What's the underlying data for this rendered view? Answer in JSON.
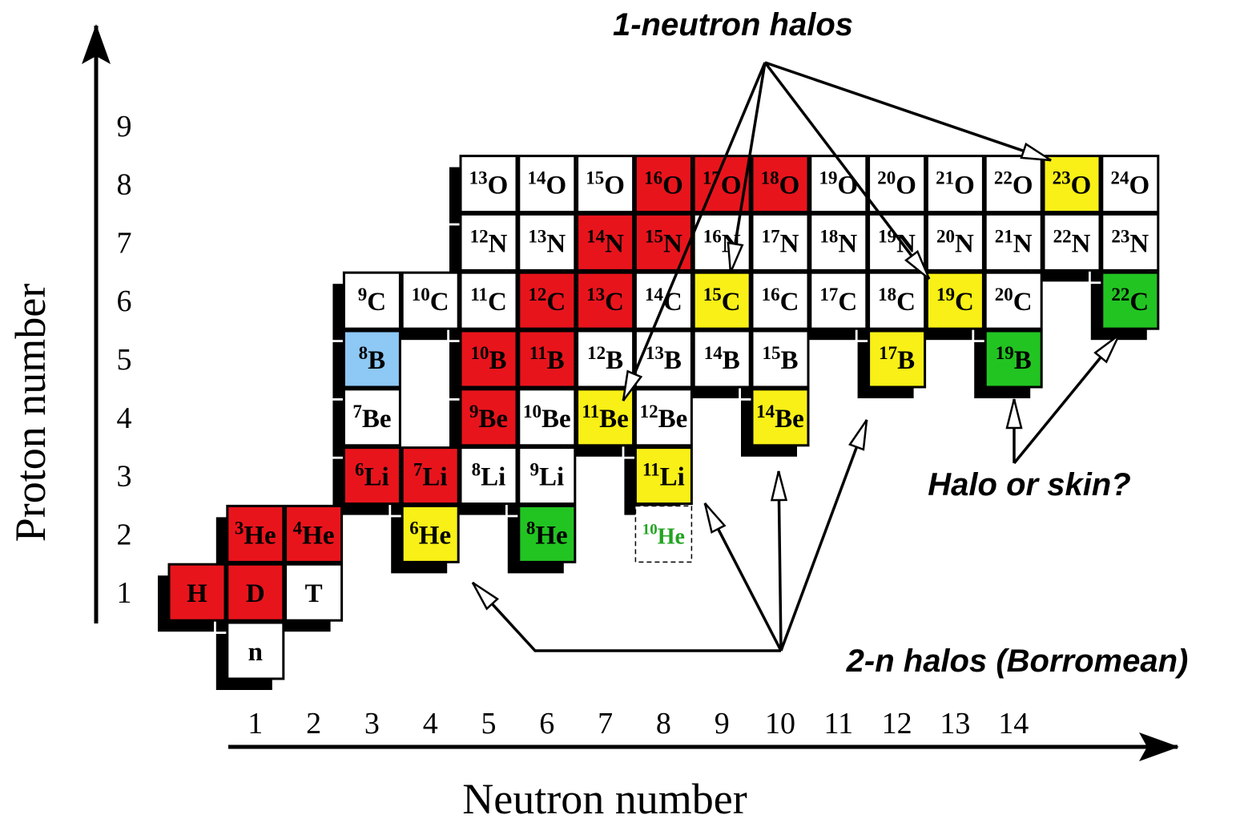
{
  "x_axis": {
    "label": "Neutron number",
    "ticks": [
      1,
      2,
      3,
      4,
      5,
      6,
      7,
      8,
      9,
      10,
      11,
      12,
      13,
      14
    ]
  },
  "y_axis": {
    "label": "Proton number",
    "ticks": [
      1,
      2,
      3,
      4,
      5,
      6,
      7,
      8,
      9
    ]
  },
  "annotations": {
    "one_neutron": "1-neutron halos",
    "two_neutron": "2-n halos (Borromean)",
    "halo_or_skin": "Halo or skin?"
  },
  "nuclides": [
    {
      "symbol": "n",
      "neutrons": 1,
      "protons": 0,
      "color": "#ffffff"
    },
    {
      "symbol": "H",
      "neutrons": 0,
      "protons": 1,
      "color": "#e8141c"
    },
    {
      "symbol": "D",
      "neutrons": 1,
      "protons": 1,
      "color": "#e8141c"
    },
    {
      "symbol": "T",
      "neutrons": 2,
      "protons": 1,
      "color": "#ffffff"
    },
    {
      "mass": 3,
      "symbol": "He",
      "neutrons": 1,
      "protons": 2,
      "color": "#e8141c"
    },
    {
      "mass": 4,
      "symbol": "He",
      "neutrons": 2,
      "protons": 2,
      "color": "#e8141c"
    },
    {
      "mass": 6,
      "symbol": "He",
      "neutrons": 4,
      "protons": 2,
      "color": "#f8f016"
    },
    {
      "mass": 8,
      "symbol": "He",
      "neutrons": 6,
      "protons": 2,
      "color": "#22c422"
    },
    {
      "mass": 10,
      "symbol": "He",
      "neutrons": 8,
      "protons": 2,
      "color": "#ffffff",
      "border": "dashed",
      "text_color": "#22a422"
    },
    {
      "mass": 6,
      "symbol": "Li",
      "neutrons": 3,
      "protons": 3,
      "color": "#e8141c"
    },
    {
      "mass": 7,
      "symbol": "Li",
      "neutrons": 4,
      "protons": 3,
      "color": "#e8141c"
    },
    {
      "mass": 8,
      "symbol": "Li",
      "neutrons": 5,
      "protons": 3,
      "color": "#ffffff"
    },
    {
      "mass": 9,
      "symbol": "Li",
      "neutrons": 6,
      "protons": 3,
      "color": "#ffffff"
    },
    {
      "mass": 11,
      "symbol": "Li",
      "neutrons": 8,
      "protons": 3,
      "color": "#f8f016"
    },
    {
      "mass": 7,
      "symbol": "Be",
      "neutrons": 3,
      "protons": 4,
      "color": "#ffffff"
    },
    {
      "mass": 9,
      "symbol": "Be",
      "neutrons": 5,
      "protons": 4,
      "color": "#e8141c"
    },
    {
      "mass": 10,
      "symbol": "Be",
      "neutrons": 6,
      "protons": 4,
      "color": "#ffffff"
    },
    {
      "mass": 11,
      "symbol": "Be",
      "neutrons": 7,
      "protons": 4,
      "color": "#f8f016"
    },
    {
      "mass": 12,
      "symbol": "Be",
      "neutrons": 8,
      "protons": 4,
      "color": "#ffffff"
    },
    {
      "mass": 14,
      "symbol": "Be",
      "neutrons": 10,
      "protons": 4,
      "color": "#f8f016"
    },
    {
      "mass": 8,
      "symbol": "B",
      "neutrons": 3,
      "protons": 5,
      "color": "#8ec8f4"
    },
    {
      "mass": 10,
      "symbol": "B",
      "neutrons": 5,
      "protons": 5,
      "color": "#e8141c"
    },
    {
      "mass": 11,
      "symbol": "B",
      "neutrons": 6,
      "protons": 5,
      "color": "#e8141c"
    },
    {
      "mass": 12,
      "symbol": "B",
      "neutrons": 7,
      "protons": 5,
      "color": "#ffffff"
    },
    {
      "mass": 13,
      "symbol": "B",
      "neutrons": 8,
      "protons": 5,
      "color": "#ffffff"
    },
    {
      "mass": 14,
      "symbol": "B",
      "neutrons": 9,
      "protons": 5,
      "color": "#ffffff"
    },
    {
      "mass": 15,
      "symbol": "B",
      "neutrons": 10,
      "protons": 5,
      "color": "#ffffff"
    },
    {
      "mass": 17,
      "symbol": "B",
      "neutrons": 12,
      "protons": 5,
      "color": "#f8f016"
    },
    {
      "mass": 19,
      "symbol": "B",
      "neutrons": 14,
      "protons": 5,
      "color": "#22c422"
    },
    {
      "mass": 9,
      "symbol": "C",
      "neutrons": 3,
      "protons": 6,
      "color": "#ffffff"
    },
    {
      "mass": 10,
      "symbol": "C",
      "neutrons": 4,
      "protons": 6,
      "color": "#ffffff"
    },
    {
      "mass": 11,
      "symbol": "C",
      "neutrons": 5,
      "protons": 6,
      "color": "#ffffff"
    },
    {
      "mass": 12,
      "symbol": "C",
      "neutrons": 6,
      "protons": 6,
      "color": "#e8141c"
    },
    {
      "mass": 13,
      "symbol": "C",
      "neutrons": 7,
      "protons": 6,
      "color": "#e8141c"
    },
    {
      "mass": 14,
      "symbol": "C",
      "neutrons": 8,
      "protons": 6,
      "color": "#ffffff"
    },
    {
      "mass": 15,
      "symbol": "C",
      "neutrons": 9,
      "protons": 6,
      "color": "#f8f016"
    },
    {
      "mass": 16,
      "symbol": "C",
      "neutrons": 10,
      "protons": 6,
      "color": "#ffffff"
    },
    {
      "mass": 17,
      "symbol": "C",
      "neutrons": 11,
      "protons": 6,
      "color": "#ffffff"
    },
    {
      "mass": 18,
      "symbol": "C",
      "neutrons": 12,
      "protons": 6,
      "color": "#ffffff"
    },
    {
      "mass": 19,
      "symbol": "C",
      "neutrons": 13,
      "protons": 6,
      "color": "#f8f016"
    },
    {
      "mass": 20,
      "symbol": "C",
      "neutrons": 14,
      "protons": 6,
      "color": "#ffffff"
    },
    {
      "mass": 22,
      "symbol": "C",
      "neutrons": 16,
      "protons": 6,
      "color": "#22c422"
    },
    {
      "mass": 12,
      "symbol": "N",
      "neutrons": 5,
      "protons": 7,
      "color": "#ffffff"
    },
    {
      "mass": 13,
      "symbol": "N",
      "neutrons": 6,
      "protons": 7,
      "color": "#ffffff"
    },
    {
      "mass": 14,
      "symbol": "N",
      "neutrons": 7,
      "protons": 7,
      "color": "#e8141c"
    },
    {
      "mass": 15,
      "symbol": "N",
      "neutrons": 8,
      "protons": 7,
      "color": "#e8141c"
    },
    {
      "mass": 16,
      "symbol": "N",
      "neutrons": 9,
      "protons": 7,
      "color": "#ffffff"
    },
    {
      "mass": 17,
      "symbol": "N",
      "neutrons": 10,
      "protons": 7,
      "color": "#ffffff"
    },
    {
      "mass": 18,
      "symbol": "N",
      "neutrons": 11,
      "protons": 7,
      "color": "#ffffff"
    },
    {
      "mass": 19,
      "symbol": "N",
      "neutrons": 12,
      "protons": 7,
      "color": "#ffffff"
    },
    {
      "mass": 20,
      "symbol": "N",
      "neutrons": 13,
      "protons": 7,
      "color": "#ffffff"
    },
    {
      "mass": 21,
      "symbol": "N",
      "neutrons": 14,
      "protons": 7,
      "color": "#ffffff"
    },
    {
      "mass": 22,
      "symbol": "N",
      "neutrons": 15,
      "protons": 7,
      "color": "#ffffff"
    },
    {
      "mass": 23,
      "symbol": "N",
      "neutrons": 16,
      "protons": 7,
      "color": "#ffffff"
    },
    {
      "mass": 13,
      "symbol": "O",
      "neutrons": 5,
      "protons": 8,
      "color": "#ffffff"
    },
    {
      "mass": 14,
      "symbol": "O",
      "neutrons": 6,
      "protons": 8,
      "color": "#ffffff"
    },
    {
      "mass": 15,
      "symbol": "O",
      "neutrons": 7,
      "protons": 8,
      "color": "#ffffff"
    },
    {
      "mass": 16,
      "symbol": "O",
      "neutrons": 8,
      "protons": 8,
      "color": "#e8141c"
    },
    {
      "mass": 17,
      "symbol": "O",
      "neutrons": 9,
      "protons": 8,
      "color": "#e8141c"
    },
    {
      "mass": 18,
      "symbol": "O",
      "neutrons": 10,
      "protons": 8,
      "color": "#e8141c"
    },
    {
      "mass": 19,
      "symbol": "O",
      "neutrons": 11,
      "protons": 8,
      "color": "#ffffff"
    },
    {
      "mass": 20,
      "symbol": "O",
      "neutrons": 12,
      "protons": 8,
      "color": "#ffffff"
    },
    {
      "mass": 21,
      "symbol": "O",
      "neutrons": 13,
      "protons": 8,
      "color": "#ffffff"
    },
    {
      "mass": 22,
      "symbol": "O",
      "neutrons": 14,
      "protons": 8,
      "color": "#ffffff"
    },
    {
      "mass": 23,
      "symbol": "O",
      "neutrons": 15,
      "protons": 8,
      "color": "#f8f016"
    },
    {
      "mass": 24,
      "symbol": "O",
      "neutrons": 16,
      "protons": 8,
      "color": "#ffffff"
    }
  ]
}
